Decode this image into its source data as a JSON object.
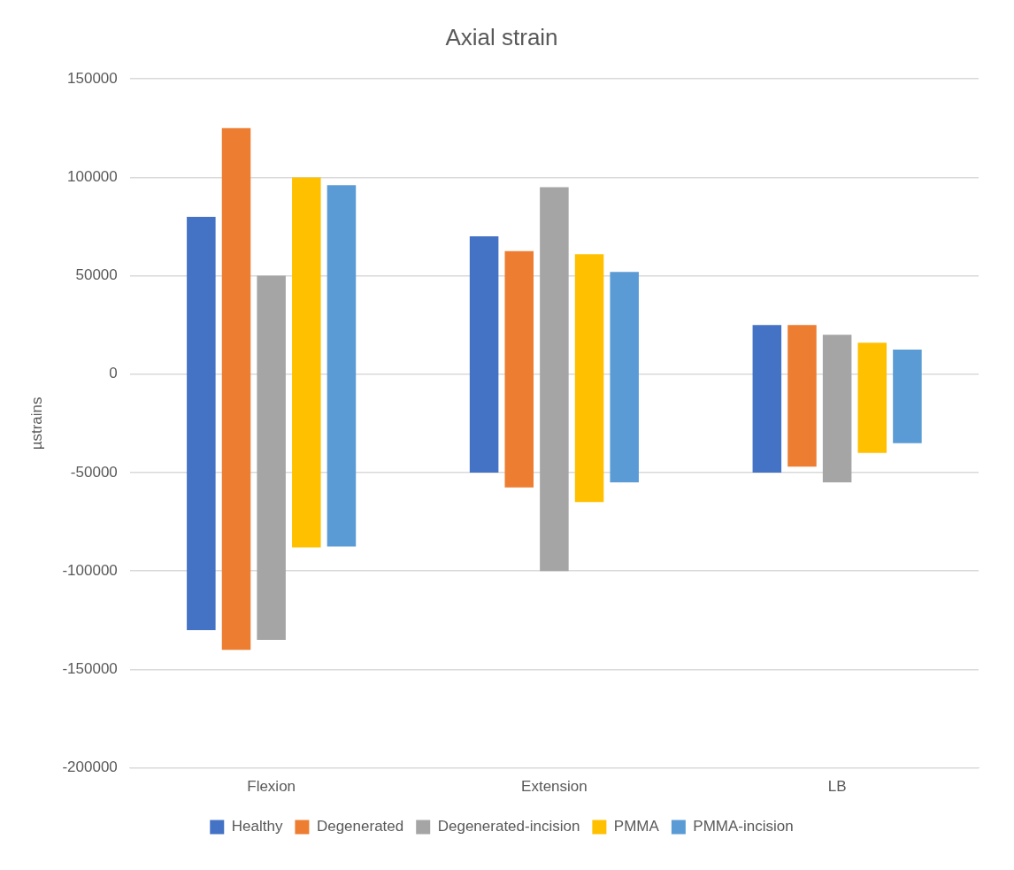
{
  "chart_data": {
    "type": "bar",
    "title": "Axial strain",
    "ylabel": "µstrains",
    "categories": [
      "Flexion",
      "Extension",
      "LB"
    ],
    "series": [
      {
        "name": "Healthy",
        "color": "#4472c4",
        "base": [
          -130000,
          -50000,
          -50000
        ],
        "values": [
          210000,
          120000,
          75000
        ]
      },
      {
        "name": "Degenerated",
        "color": "#ed7d31",
        "base": [
          -140000,
          -57500,
          -47000
        ],
        "values": [
          265000,
          120000,
          72000
        ]
      },
      {
        "name": "Degenerated-incision",
        "color": "#a5a5a5",
        "base": [
          -135000,
          -100000,
          -55000
        ],
        "values": [
          185000,
          195000,
          75000
        ]
      },
      {
        "name": "PMMA",
        "color": "#ffc000",
        "base": [
          -88000,
          -65000,
          -40000
        ],
        "values": [
          188000,
          126000,
          56000
        ]
      },
      {
        "name": "PMMA-incision",
        "color": "#5b9bd5",
        "base": [
          -87500,
          -55000,
          -35000
        ],
        "values": [
          183500,
          107000,
          47500
        ]
      }
    ],
    "ylim": [
      -200000,
      150000
    ],
    "yticks": [
      -200000,
      -150000,
      -100000,
      -50000,
      0,
      50000,
      100000,
      150000
    ],
    "grid": "y",
    "legend": "bottom"
  }
}
